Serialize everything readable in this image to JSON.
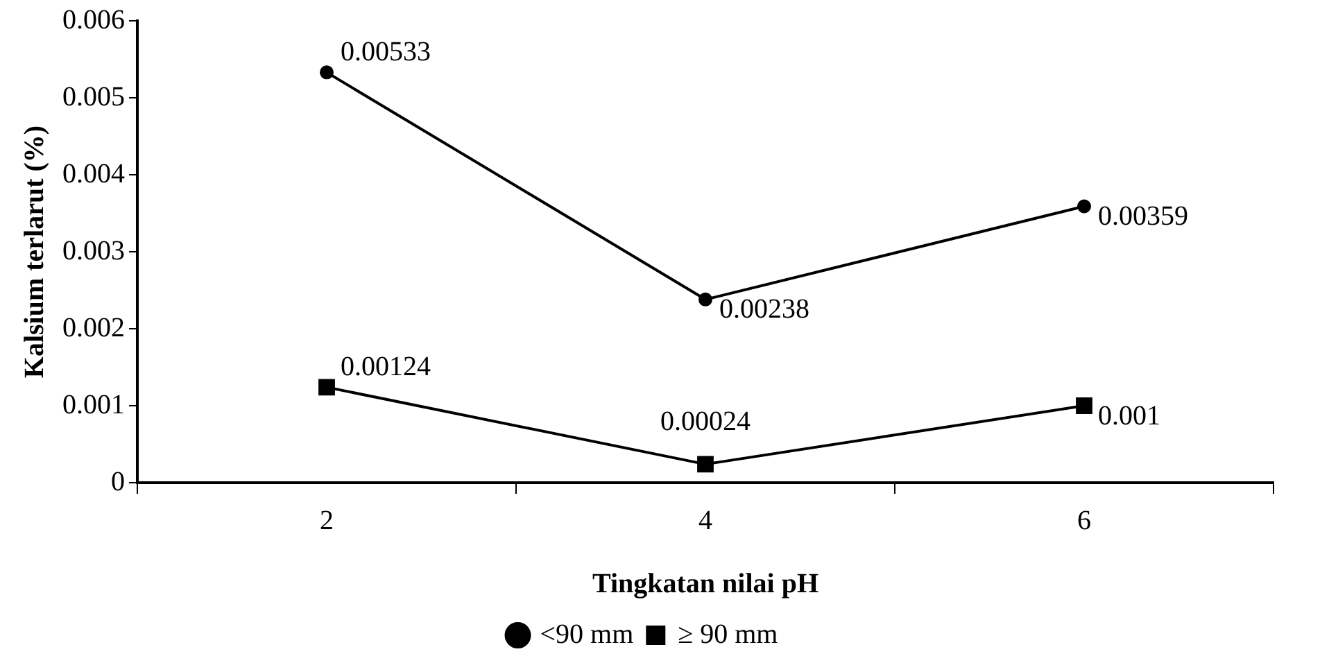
{
  "chart_data": {
    "type": "line",
    "xlabel": "Tingkatan nilai pH",
    "ylabel": "Kalsium terlarut (%)",
    "categories": [
      "2",
      "4",
      "6"
    ],
    "series": [
      {
        "name": "<90 mm",
        "color": "#000000",
        "marker": "circle",
        "values": [
          0.00533,
          0.00238,
          0.00359
        ]
      },
      {
        "name": "≥ 90 mm",
        "color": "#000000",
        "marker": "square",
        "values": [
          0.00124,
          0.00024,
          0.001
        ]
      }
    ],
    "ylim": [
      0,
      0.006
    ],
    "yticks": [
      0,
      0.001,
      0.002,
      0.003,
      0.004,
      0.005,
      0.006
    ],
    "data_labels": true,
    "legend": "bottom",
    "grid": false,
    "line_style": "solid"
  }
}
